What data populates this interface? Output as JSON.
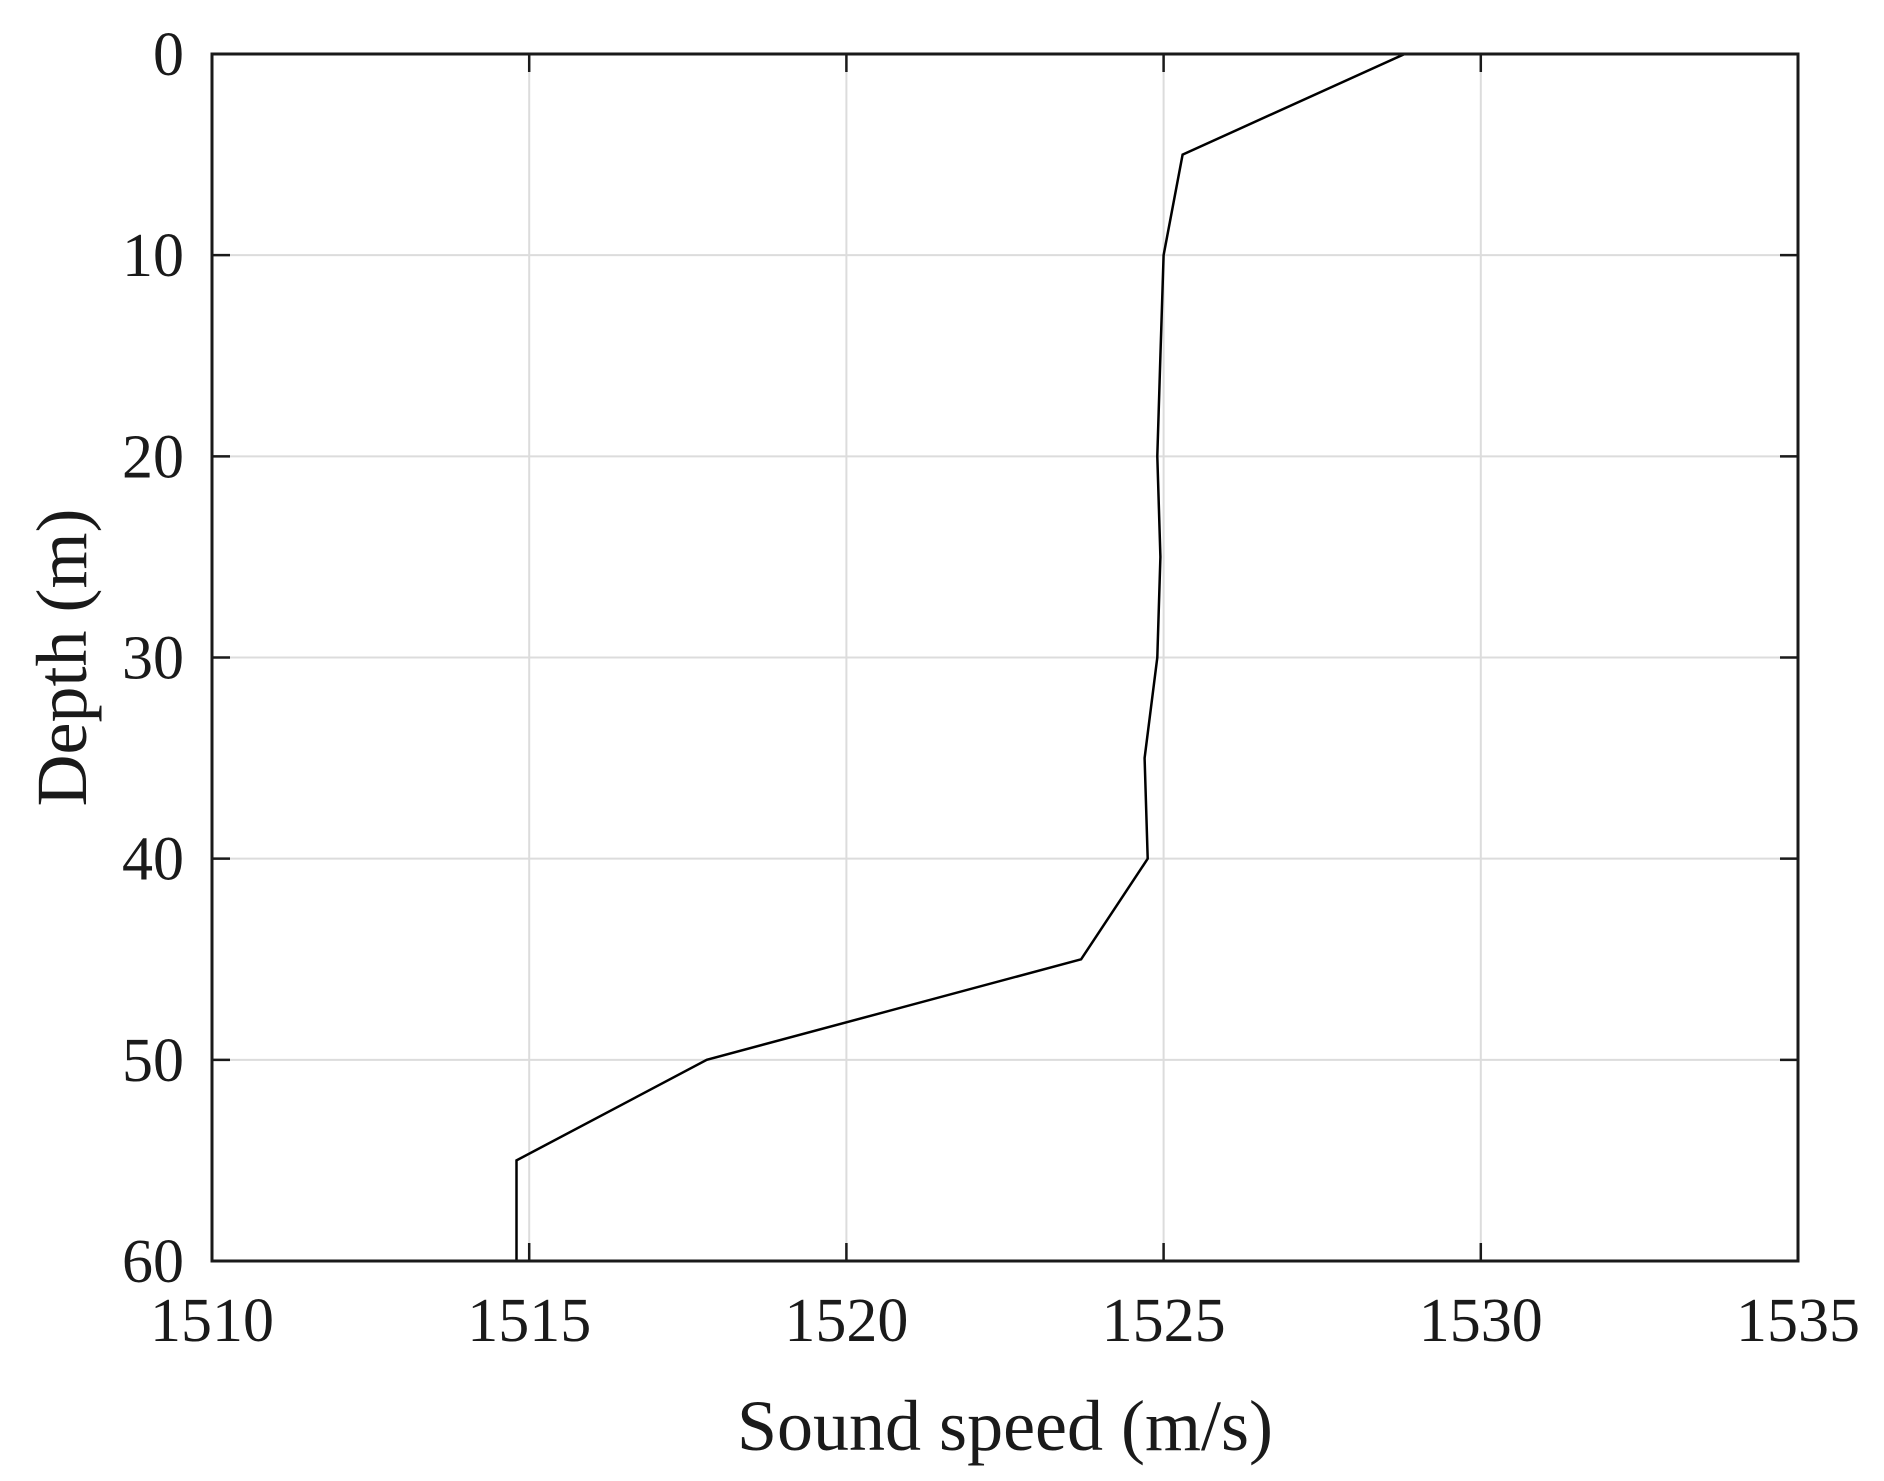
{
  "chart_data": {
    "type": "line",
    "title": "",
    "xlabel": "Sound speed (m/s)",
    "ylabel": "Depth (m)",
    "xlim": [
      1510,
      1535
    ],
    "ylim": [
      0,
      60
    ],
    "y_inverted": true,
    "grid": true,
    "x_ticks": [
      "1510",
      "1515",
      "1520",
      "1525",
      "1530",
      "1535"
    ],
    "y_ticks": [
      "0",
      "10",
      "20",
      "30",
      "40",
      "50",
      "60"
    ],
    "series": [
      {
        "color": "#000000",
        "points": [
          {
            "x": 1528.8,
            "y": 0
          },
          {
            "x": 1525.3,
            "y": 5
          },
          {
            "x": 1525.0,
            "y": 10
          },
          {
            "x": 1524.95,
            "y": 15
          },
          {
            "x": 1524.9,
            "y": 20
          },
          {
            "x": 1524.95,
            "y": 25
          },
          {
            "x": 1524.9,
            "y": 30
          },
          {
            "x": 1524.7,
            "y": 35
          },
          {
            "x": 1524.75,
            "y": 40
          },
          {
            "x": 1523.7,
            "y": 45
          },
          {
            "x": 1517.8,
            "y": 50
          },
          {
            "x": 1514.8,
            "y": 55
          },
          {
            "x": 1514.8,
            "y": 60
          }
        ]
      }
    ]
  }
}
